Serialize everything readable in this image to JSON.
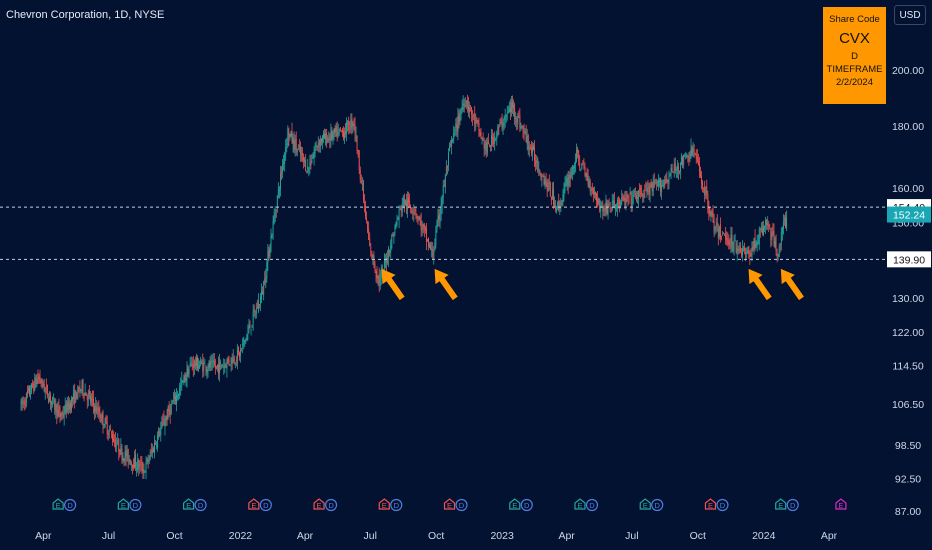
{
  "header": {
    "title": "Chevron Corporation, 1D, NYSE",
    "currency": "USD"
  },
  "info_box": {
    "line1": "Share Code",
    "ticker": "CVX",
    "line3": "D TIMEFRAME",
    "date": "2/2/2024"
  },
  "colors": {
    "background": "#041232",
    "up": "#26a69a",
    "down": "#ef5350",
    "arrow": "#ff9800",
    "box": "#ff9800"
  },
  "chart_data": {
    "type": "candlestick",
    "y_scale": "log",
    "ylim": [
      87,
      215
    ],
    "y_ticks": [
      "200.00",
      "180.00",
      "160.00",
      "150.00",
      "139.90",
      "130.00",
      "122.00",
      "114.50",
      "106.50",
      "98.50",
      "92.50",
      "87.00"
    ],
    "x_ticks": [
      "Apr",
      "Jul",
      "Oct",
      "2022",
      "Apr",
      "Jul",
      "Oct",
      "2023",
      "Apr",
      "Jul",
      "Oct",
      "2024",
      "Apr"
    ],
    "horizontal_levels": [
      {
        "value": 154.4,
        "label": "154.40"
      },
      {
        "value": 139.9,
        "label": "139.90"
      }
    ],
    "current_price": {
      "value": 152.24,
      "label": "152.24"
    },
    "price_path": [
      [
        "2021-03-01",
        106
      ],
      [
        "2021-03-25",
        112
      ],
      [
        "2021-04-25",
        104
      ],
      [
        "2021-05-25",
        110
      ],
      [
        "2021-06-20",
        104
      ],
      [
        "2021-07-20",
        97
      ],
      [
        "2021-08-20",
        94
      ],
      [
        "2021-09-10",
        101
      ],
      [
        "2021-10-25",
        115
      ],
      [
        "2021-11-30",
        114
      ],
      [
        "2021-12-31",
        117
      ],
      [
        "2022-01-31",
        131
      ],
      [
        "2022-03-08",
        178
      ],
      [
        "2022-04-05",
        166
      ],
      [
        "2022-04-20",
        175
      ],
      [
        "2022-05-25",
        178
      ],
      [
        "2022-06-08",
        182
      ],
      [
        "2022-06-30",
        143
      ],
      [
        "2022-07-14",
        134
      ],
      [
        "2022-08-15",
        156
      ],
      [
        "2022-09-01",
        154
      ],
      [
        "2022-09-26",
        141
      ],
      [
        "2022-10-20",
        172
      ],
      [
        "2022-11-10",
        190
      ],
      [
        "2022-12-10",
        172
      ],
      [
        "2023-01-15",
        187
      ],
      [
        "2023-02-20",
        167
      ],
      [
        "2023-03-20",
        154
      ],
      [
        "2023-04-15",
        170
      ],
      [
        "2023-05-20",
        154
      ],
      [
        "2023-06-20",
        156
      ],
      [
        "2023-08-10",
        161
      ],
      [
        "2023-09-25",
        172
      ],
      [
        "2023-10-25",
        148
      ],
      [
        "2023-11-15",
        145
      ],
      [
        "2023-12-10",
        141
      ],
      [
        "2024-01-05",
        150
      ],
      [
        "2024-01-20",
        142
      ],
      [
        "2024-02-02",
        152
      ]
    ],
    "event_markers": [
      {
        "date": "2021-04-30",
        "labels": [
          "E",
          "D"
        ]
      },
      {
        "date": "2021-07-30",
        "labels": [
          "E",
          "D"
        ]
      },
      {
        "date": "2021-10-29",
        "labels": [
          "E",
          "D"
        ]
      },
      {
        "date": "2022-01-28",
        "labels": [
          "E",
          "D"
        ]
      },
      {
        "date": "2022-04-29",
        "labels": [
          "E",
          "D"
        ]
      },
      {
        "date": "2022-07-29",
        "labels": [
          "E",
          "D"
        ]
      },
      {
        "date": "2022-10-28",
        "labels": [
          "E",
          "D"
        ]
      },
      {
        "date": "2023-01-27",
        "labels": [
          "E",
          "D"
        ]
      },
      {
        "date": "2023-04-28",
        "labels": [
          "E",
          "D"
        ]
      },
      {
        "date": "2023-07-28",
        "labels": [
          "E",
          "D"
        ]
      },
      {
        "date": "2023-10-27",
        "labels": [
          "E",
          "D"
        ]
      },
      {
        "date": "2024-02-02",
        "labels": [
          "E",
          "D"
        ]
      },
      {
        "date": "2024-04-26",
        "labels": [
          "E"
        ]
      }
    ],
    "annotations": [
      {
        "type": "arrow",
        "date": "2022-07-14",
        "value": 139.5
      },
      {
        "type": "arrow",
        "date": "2022-09-26",
        "value": 139.5
      },
      {
        "type": "arrow",
        "date": "2023-12-08",
        "value": 139.5
      },
      {
        "type": "arrow",
        "date": "2024-01-22",
        "value": 139.5
      }
    ]
  }
}
